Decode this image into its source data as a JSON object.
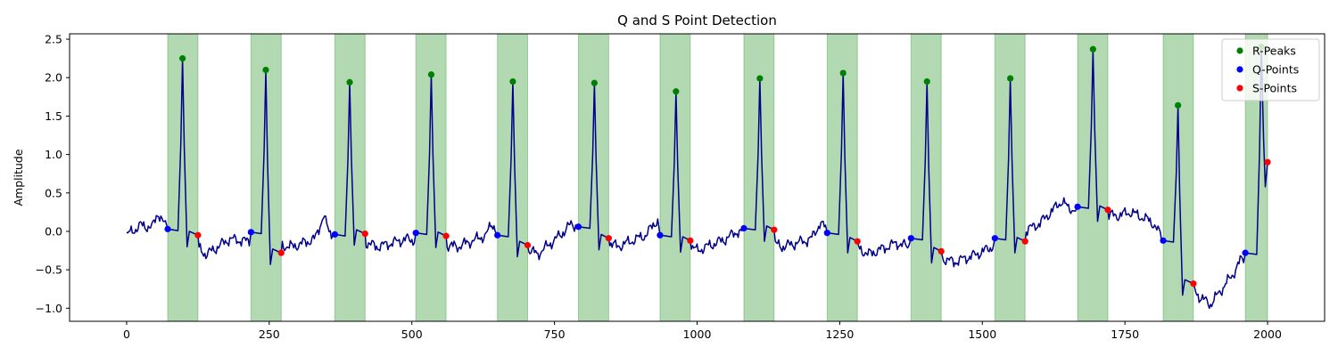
{
  "chart_data": {
    "type": "line",
    "title": "Q and S Point Detection",
    "xlabel": "",
    "ylabel": "Amplitude",
    "xlim": [
      -100,
      2100
    ],
    "ylim": [
      -1.17,
      2.57
    ],
    "x_ticks": [
      0,
      250,
      500,
      750,
      1000,
      1250,
      1500,
      1750,
      2000
    ],
    "y_ticks": [
      -1.0,
      -0.5,
      0.0,
      0.5,
      1.0,
      1.5,
      2.0,
      2.5
    ],
    "x_tick_labels": [
      "0",
      "250",
      "500",
      "750",
      "1000",
      "1250",
      "1500",
      "1750",
      "2000"
    ],
    "y_tick_labels": [
      "−1.0",
      "−0.5",
      "0.0",
      "0.5",
      "1.0",
      "1.5",
      "2.0",
      "2.5"
    ],
    "grid": false,
    "legend_position": "top-right",
    "colors": {
      "signal": "#00008b",
      "r_peaks": "#008000",
      "q_points": "#0000ff",
      "s_points": "#ff0000",
      "qrs_span": "#008000"
    },
    "qrs_intervals": [
      [
        72,
        125
      ],
      [
        218,
        271
      ],
      [
        365,
        418
      ],
      [
        507,
        560
      ],
      [
        650,
        703
      ],
      [
        792,
        845
      ],
      [
        935,
        988
      ],
      [
        1082,
        1135
      ],
      [
        1228,
        1281
      ],
      [
        1375,
        1428
      ],
      [
        1522,
        1575
      ],
      [
        1667,
        1720
      ],
      [
        1817,
        1870
      ],
      [
        1961,
        2000
      ]
    ],
    "series": [
      {
        "name": "R-Peaks",
        "marker": "circle",
        "x": [
          98,
          244,
          391,
          534,
          677,
          820,
          963,
          1110,
          1256,
          1403,
          1549,
          1694,
          1843,
          1989
        ],
        "y": [
          2.25,
          2.1,
          1.94,
          2.04,
          1.95,
          1.93,
          1.82,
          1.99,
          2.06,
          1.95,
          1.99,
          2.37,
          1.64,
          2.4
        ]
      },
      {
        "name": "Q-Points",
        "marker": "circle",
        "x": [
          72,
          218,
          365,
          507,
          650,
          792,
          935,
          1082,
          1228,
          1375,
          1522,
          1667,
          1817,
          1961
        ],
        "y": [
          0.03,
          -0.01,
          -0.04,
          -0.02,
          -0.05,
          0.06,
          -0.05,
          0.04,
          -0.02,
          -0.09,
          -0.09,
          0.32,
          -0.12,
          -0.28
        ]
      },
      {
        "name": "S-Points",
        "marker": "circle",
        "x": [
          125,
          271,
          418,
          560,
          703,
          845,
          988,
          1135,
          1281,
          1428,
          1575,
          1720,
          1870,
          2000
        ],
        "y": [
          -0.05,
          -0.28,
          -0.03,
          -0.06,
          -0.18,
          -0.09,
          -0.12,
          0.02,
          -0.13,
          -0.26,
          -0.13,
          0.28,
          -0.68,
          0.9
        ]
      }
    ]
  }
}
